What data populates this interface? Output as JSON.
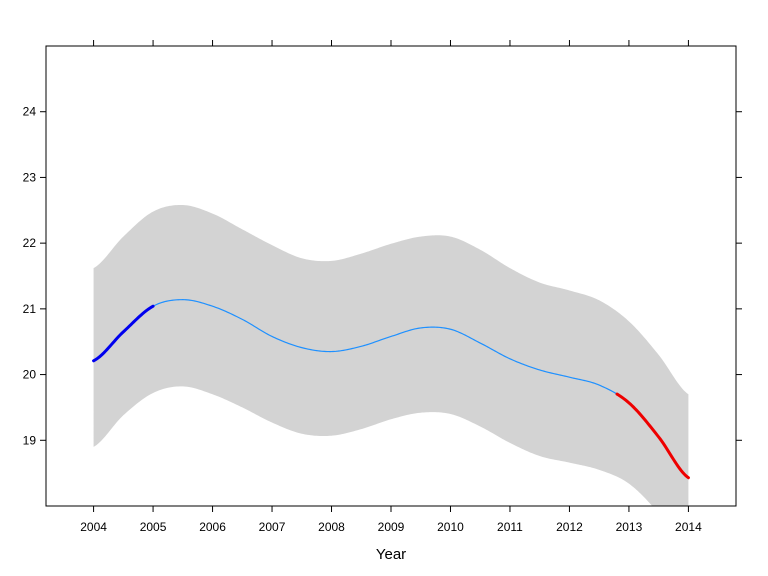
{
  "chart_data": {
    "type": "line",
    "title": "",
    "xlabel": "Year",
    "ylabel": "",
    "xlim": [
      2003.2,
      2014.8
    ],
    "ylim": [
      18.0,
      25.0
    ],
    "x_ticks": [
      2004,
      2005,
      2006,
      2007,
      2008,
      2009,
      2010,
      2011,
      2012,
      2013,
      2014
    ],
    "x_tick_labels": [
      "2004",
      "2005",
      "2006",
      "2007",
      "2008",
      "2009",
      "2010",
      "2011",
      "2012",
      "2013",
      "2014"
    ],
    "y_ticks": [
      19,
      20,
      21,
      22,
      23,
      24
    ],
    "y_tick_labels": [
      "19",
      "20",
      "21",
      "22",
      "23",
      "24"
    ],
    "grid": false,
    "colors": {
      "band": "#d3d3d3",
      "fit": "#1e90ff",
      "increasing": "#0000ee",
      "decreasing": "#ee0000",
      "frame": "#000000"
    },
    "x": [
      2004.0,
      2004.5,
      2005.0,
      2005.5,
      2006.0,
      2006.5,
      2007.0,
      2007.5,
      2008.0,
      2008.5,
      2009.0,
      2009.5,
      2010.0,
      2010.5,
      2011.0,
      2011.5,
      2012.0,
      2012.5,
      2013.0,
      2013.5,
      2014.0
    ],
    "series": [
      {
        "role": "fit",
        "values": [
          20.21,
          20.65,
          21.04,
          21.14,
          21.04,
          20.84,
          20.58,
          20.41,
          20.35,
          20.43,
          20.58,
          20.71,
          20.69,
          20.48,
          20.24,
          20.07,
          19.96,
          19.84,
          19.57,
          19.05,
          18.43
        ]
      },
      {
        "role": "upper",
        "values": [
          21.62,
          22.1,
          22.48,
          22.58,
          22.45,
          22.21,
          21.97,
          21.77,
          21.73,
          21.84,
          21.99,
          22.1,
          22.1,
          21.9,
          21.62,
          21.4,
          21.28,
          21.13,
          20.81,
          20.3,
          19.7
        ]
      },
      {
        "role": "lower",
        "values": [
          18.9,
          19.38,
          19.72,
          19.82,
          19.7,
          19.5,
          19.27,
          19.1,
          19.07,
          19.17,
          19.32,
          19.42,
          19.4,
          19.21,
          18.96,
          18.76,
          18.66,
          18.55,
          18.34,
          17.88,
          17.2
        ]
      }
    ],
    "highlights": [
      {
        "role": "increasing",
        "x_range": [
          2004.0,
          2005.0
        ]
      },
      {
        "role": "decreasing",
        "x_range": [
          2012.8,
          2014.0
        ]
      }
    ]
  }
}
